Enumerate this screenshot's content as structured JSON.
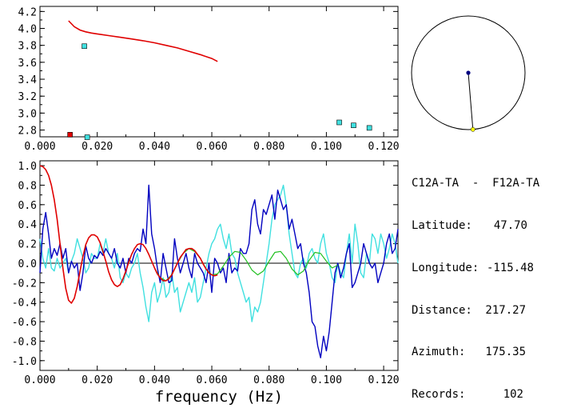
{
  "station_pair": "C12A-TA  -  F12A-TA",
  "info": [
    {
      "label": "Latitude:",
      "value": "47.70"
    },
    {
      "label": "Longitude:",
      "value": "-115.48"
    },
    {
      "label": "Distance:",
      "value": "217.27"
    },
    {
      "label": "Azimuth:",
      "value": "175.35"
    },
    {
      "label": "Records:",
      "value": "102"
    }
  ],
  "azimuth_deg": 175.35,
  "colors": {
    "dispersion_curve": "#e00000",
    "picked_marker": "#e00000",
    "measurement_marker": "#40e0e0",
    "real": "#0000c0",
    "imag": "#40e0e0",
    "model": "#e00000",
    "model_tail": "#20c020",
    "zero_line": "#000000",
    "station": "#ffff00",
    "center": "#000080"
  },
  "chart_data": [
    {
      "type": "scatter",
      "xlabel": "",
      "ylabel": "",
      "xlim": [
        0,
        0.125
      ],
      "ylim": [
        2.72,
        4.26
      ],
      "xticks": [
        "0.000",
        "0.020",
        "0.040",
        "0.060",
        "0.080",
        "0.100",
        "0.120"
      ],
      "yticks": [
        "2.8",
        "3.0",
        "3.2",
        "3.4",
        "3.6",
        "3.8",
        "4.0",
        "4.2"
      ],
      "curve": {
        "x": [
          0.01,
          0.012,
          0.014,
          0.016,
          0.018,
          0.02,
          0.024,
          0.028,
          0.032,
          0.036,
          0.04,
          0.044,
          0.048,
          0.052,
          0.056,
          0.06,
          0.062
        ],
        "y": [
          4.09,
          4.02,
          3.98,
          3.96,
          3.945,
          3.935,
          3.915,
          3.895,
          3.875,
          3.855,
          3.83,
          3.8,
          3.77,
          3.73,
          3.69,
          3.645,
          3.61
        ]
      },
      "picked": [
        {
          "x": 0.0105,
          "y": 2.745
        }
      ],
      "measurements": [
        {
          "x": 0.0155,
          "y": 3.79
        },
        {
          "x": 0.0165,
          "y": 2.715
        },
        {
          "x": 0.1045,
          "y": 2.89
        },
        {
          "x": 0.1095,
          "y": 2.855
        },
        {
          "x": 0.115,
          "y": 2.825
        }
      ]
    },
    {
      "type": "line",
      "xlabel": "frequency (Hz)",
      "ylabel": "",
      "xlim": [
        0,
        0.125
      ],
      "ylim": [
        -1.1,
        1.05
      ],
      "xticks": [
        "0.000",
        "0.020",
        "0.040",
        "0.060",
        "0.080",
        "0.100",
        "0.120"
      ],
      "yticks": [
        "1.0",
        "0.8",
        "0.6",
        "0.4",
        "0.2",
        "0.0",
        "-0.2",
        "-0.4",
        "-0.6",
        "-0.8",
        "-1.0"
      ],
      "series": [
        {
          "key": "real",
          "x": [
            0.0,
            0.001,
            0.002,
            0.003,
            0.004,
            0.005,
            0.006,
            0.007,
            0.008,
            0.009,
            0.01,
            0.011,
            0.012,
            0.013,
            0.014,
            0.015,
            0.016,
            0.017,
            0.018,
            0.019,
            0.02,
            0.021,
            0.022,
            0.023,
            0.024,
            0.025,
            0.026,
            0.027,
            0.028,
            0.029,
            0.03,
            0.031,
            0.032,
            0.033,
            0.034,
            0.035,
            0.036,
            0.037,
            0.038,
            0.039,
            0.04,
            0.041,
            0.042,
            0.043,
            0.044,
            0.045,
            0.046,
            0.047,
            0.048,
            0.049,
            0.05,
            0.051,
            0.052,
            0.053,
            0.054,
            0.055,
            0.056,
            0.057,
            0.058,
            0.059,
            0.06,
            0.061,
            0.062,
            0.063,
            0.064,
            0.065,
            0.066,
            0.067,
            0.068,
            0.069,
            0.07,
            0.071,
            0.072,
            0.073,
            0.074,
            0.075,
            0.076,
            0.077,
            0.078,
            0.079,
            0.08,
            0.081,
            0.082,
            0.083,
            0.084,
            0.085,
            0.086,
            0.087,
            0.088,
            0.089,
            0.09,
            0.091,
            0.092,
            0.093,
            0.094,
            0.095,
            0.096,
            0.097,
            0.098,
            0.099,
            0.1,
            0.101,
            0.102,
            0.103,
            0.104,
            0.105,
            0.106,
            0.107,
            0.108,
            0.109,
            0.11,
            0.111,
            0.112,
            0.113,
            0.114,
            0.115,
            0.116,
            0.117,
            0.118,
            0.119,
            0.12,
            0.121,
            0.122,
            0.123,
            0.124,
            0.125
          ],
          "y": [
            -0.1,
            0.35,
            0.52,
            0.3,
            0.05,
            0.15,
            0.08,
            0.2,
            0.05,
            0.15,
            -0.1,
            0.02,
            -0.05,
            0.0,
            -0.28,
            -0.1,
            0.18,
            0.05,
            0.0,
            0.08,
            0.05,
            0.12,
            0.08,
            0.15,
            0.1,
            0.05,
            0.15,
            0.0,
            -0.05,
            0.05,
            -0.1,
            0.05,
            0.0,
            0.1,
            0.15,
            0.12,
            0.35,
            0.2,
            0.8,
            0.3,
            0.15,
            -0.05,
            -0.2,
            0.1,
            -0.05,
            -0.2,
            -0.18,
            0.25,
            0.05,
            -0.1,
            0.0,
            0.1,
            -0.05,
            -0.15,
            0.1,
            0.0,
            -0.05,
            -0.1,
            -0.2,
            0.0,
            -0.3,
            0.05,
            0.0,
            -0.1,
            -0.05,
            -0.2,
            0.1,
            -0.1,
            -0.05,
            -0.08,
            0.15,
            0.1,
            0.1,
            0.2,
            0.55,
            0.65,
            0.4,
            0.3,
            0.55,
            0.5,
            0.6,
            0.7,
            0.45,
            0.75,
            0.65,
            0.55,
            0.6,
            0.35,
            0.45,
            0.3,
            0.15,
            0.2,
            0.0,
            -0.1,
            -0.3,
            -0.6,
            -0.65,
            -0.85,
            -0.97,
            -0.75,
            -0.9,
            -0.7,
            -0.4,
            -0.1,
            0.0,
            -0.15,
            -0.05,
            0.1,
            0.2,
            -0.25,
            -0.2,
            -0.1,
            0.0,
            0.2,
            0.1,
            0.0,
            -0.05,
            0.0,
            -0.2,
            -0.1,
            0.0,
            0.2,
            0.3,
            0.1,
            0.15,
            0.35
          ]
        },
        {
          "key": "imag",
          "x": [
            0.0,
            0.001,
            0.002,
            0.003,
            0.004,
            0.005,
            0.006,
            0.007,
            0.008,
            0.009,
            0.01,
            0.011,
            0.012,
            0.013,
            0.014,
            0.015,
            0.016,
            0.017,
            0.018,
            0.019,
            0.02,
            0.021,
            0.022,
            0.023,
            0.024,
            0.025,
            0.026,
            0.027,
            0.028,
            0.029,
            0.03,
            0.031,
            0.032,
            0.033,
            0.034,
            0.035,
            0.036,
            0.037,
            0.038,
            0.039,
            0.04,
            0.041,
            0.042,
            0.043,
            0.044,
            0.045,
            0.046,
            0.047,
            0.048,
            0.049,
            0.05,
            0.051,
            0.052,
            0.053,
            0.054,
            0.055,
            0.056,
            0.057,
            0.058,
            0.059,
            0.06,
            0.061,
            0.062,
            0.063,
            0.064,
            0.065,
            0.066,
            0.067,
            0.068,
            0.069,
            0.07,
            0.071,
            0.072,
            0.073,
            0.074,
            0.075,
            0.076,
            0.077,
            0.078,
            0.079,
            0.08,
            0.081,
            0.082,
            0.083,
            0.084,
            0.085,
            0.086,
            0.087,
            0.088,
            0.089,
            0.09,
            0.091,
            0.092,
            0.093,
            0.094,
            0.095,
            0.096,
            0.097,
            0.098,
            0.099,
            0.1,
            0.101,
            0.102,
            0.103,
            0.104,
            0.105,
            0.106,
            0.107,
            0.108,
            0.109,
            0.11,
            0.111,
            0.112,
            0.113,
            0.114,
            0.115,
            0.116,
            0.117,
            0.118,
            0.119,
            0.12,
            0.121,
            0.122,
            0.123,
            0.124,
            0.125
          ],
          "y": [
            0.25,
            0.05,
            -0.05,
            0.15,
            -0.05,
            -0.08,
            0.05,
            -0.05,
            0.0,
            0.05,
            -0.1,
            0.02,
            0.1,
            0.25,
            0.15,
            0.05,
            -0.1,
            -0.05,
            0.1,
            0.05,
            0.05,
            0.2,
            0.1,
            0.25,
            0.1,
            0.05,
            -0.05,
            0.1,
            -0.15,
            -0.2,
            -0.1,
            -0.15,
            -0.05,
            0.0,
            0.1,
            -0.1,
            -0.25,
            -0.45,
            -0.6,
            -0.3,
            -0.2,
            -0.4,
            -0.3,
            -0.15,
            -0.35,
            -0.3,
            -0.1,
            -0.3,
            -0.25,
            -0.5,
            -0.4,
            -0.3,
            -0.2,
            -0.3,
            -0.15,
            -0.4,
            -0.35,
            -0.2,
            -0.05,
            0.1,
            0.2,
            0.25,
            0.35,
            0.4,
            0.25,
            0.15,
            0.3,
            0.1,
            0.05,
            -0.1,
            -0.2,
            -0.3,
            -0.4,
            -0.35,
            -0.6,
            -0.45,
            -0.5,
            -0.4,
            -0.2,
            0.0,
            0.2,
            0.45,
            0.6,
            0.65,
            0.7,
            0.8,
            0.6,
            0.3,
            0.1,
            -0.1,
            -0.15,
            0.0,
            0.05,
            -0.05,
            0.1,
            0.15,
            0.05,
            0.0,
            0.2,
            0.3,
            0.1,
            0.0,
            -0.15,
            -0.2,
            0.0,
            -0.1,
            -0.15,
            0.1,
            0.3,
            0.0,
            0.4,
            0.2,
            -0.1,
            -0.15,
            0.1,
            0.0,
            0.3,
            0.25,
            0.1,
            0.3,
            0.2,
            0.05,
            0.15,
            0.3,
            0.2,
            0.0
          ]
        },
        {
          "key": "model",
          "x": [
            0.0,
            0.001,
            0.002,
            0.003,
            0.004,
            0.005,
            0.006,
            0.007,
            0.008,
            0.009,
            0.01,
            0.011,
            0.012,
            0.013,
            0.014,
            0.015,
            0.016,
            0.017,
            0.018,
            0.019,
            0.02,
            0.021,
            0.022,
            0.023,
            0.024,
            0.025,
            0.026,
            0.027,
            0.028,
            0.029,
            0.03,
            0.031,
            0.032,
            0.033,
            0.034,
            0.035,
            0.036,
            0.037,
            0.038,
            0.039,
            0.04,
            0.041,
            0.042,
            0.043,
            0.044,
            0.045,
            0.046,
            0.047,
            0.048,
            0.049,
            0.05,
            0.051,
            0.052,
            0.053,
            0.054,
            0.055,
            0.056,
            0.057,
            0.058,
            0.059,
            0.06,
            0.061,
            0.062
          ],
          "y": [
            1.0,
            0.99,
            0.96,
            0.9,
            0.8,
            0.65,
            0.45,
            0.2,
            -0.05,
            -0.26,
            -0.38,
            -0.41,
            -0.36,
            -0.24,
            -0.08,
            0.07,
            0.19,
            0.26,
            0.29,
            0.29,
            0.27,
            0.21,
            0.12,
            0.02,
            -0.09,
            -0.17,
            -0.22,
            -0.24,
            -0.22,
            -0.16,
            -0.08,
            0.01,
            0.09,
            0.15,
            0.19,
            0.2,
            0.19,
            0.15,
            0.09,
            0.02,
            -0.05,
            -0.11,
            -0.15,
            -0.18,
            -0.18,
            -0.16,
            -0.12,
            -0.06,
            0.0,
            0.06,
            0.1,
            0.14,
            0.15,
            0.15,
            0.13,
            0.09,
            0.05,
            -0.01,
            -0.06,
            -0.1,
            -0.12,
            -0.13,
            -0.12
          ]
        },
        {
          "key": "model_tail",
          "x": [
            0.04,
            0.042,
            0.044,
            0.046,
            0.048,
            0.05,
            0.052,
            0.054,
            0.056,
            0.058,
            0.06,
            0.062,
            0.064,
            0.066,
            0.068,
            0.07,
            0.072,
            0.074,
            0.076,
            0.078,
            0.08,
            0.082,
            0.084,
            0.086,
            0.088,
            0.09,
            0.092,
            0.094,
            0.096,
            0.098,
            0.1,
            0.102,
            0.104
          ],
          "y": [
            -0.05,
            -0.15,
            -0.18,
            -0.12,
            0.0,
            0.1,
            0.15,
            0.12,
            0.05,
            -0.06,
            -0.12,
            -0.11,
            -0.03,
            0.06,
            0.12,
            0.11,
            0.03,
            -0.07,
            -0.12,
            -0.08,
            0.02,
            0.11,
            0.12,
            0.05,
            -0.06,
            -0.12,
            -0.08,
            0.03,
            0.11,
            0.1,
            0.02,
            -0.05,
            -0.02
          ]
        }
      ]
    }
  ]
}
